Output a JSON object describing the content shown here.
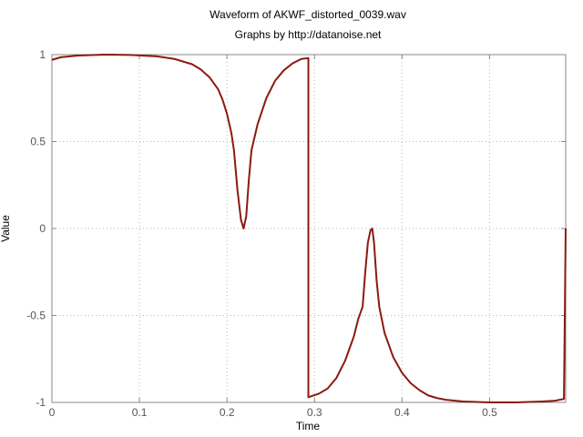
{
  "chart_data": {
    "type": "line",
    "title": "Waveform of AKWF_distorted_0039.wav",
    "subtitle": "Graphs by http://datanoise.net",
    "xlabel": "Time",
    "ylabel": "Value",
    "xlim": [
      0,
      0.587
    ],
    "ylim": [
      -1,
      1
    ],
    "xticks": [
      {
        "value": 0,
        "label": "0"
      },
      {
        "value": 0.1,
        "label": "0.1"
      },
      {
        "value": 0.2,
        "label": "0.2"
      },
      {
        "value": 0.3,
        "label": "0.3"
      },
      {
        "value": 0.4,
        "label": "0.4"
      },
      {
        "value": 0.5,
        "label": "0.5"
      }
    ],
    "yticks": [
      {
        "value": 1,
        "label": "1"
      },
      {
        "value": 0.5,
        "label": "0.5"
      },
      {
        "value": 0,
        "label": "0"
      },
      {
        "value": -0.5,
        "label": "-0.5"
      },
      {
        "value": -1,
        "label": "-1"
      }
    ],
    "grid": true,
    "line_color": "#8b1a10",
    "series": [
      {
        "x": [
          0,
          0.01,
          0.03,
          0.06,
          0.09,
          0.12,
          0.14,
          0.16,
          0.17,
          0.18,
          0.19,
          0.195,
          0.2,
          0.205,
          0.208,
          0.212,
          0.216,
          0.219,
          0.222,
          0.225,
          0.228,
          0.235,
          0.245,
          0.255,
          0.265,
          0.275,
          0.285,
          0.293,
          0.293,
          0.296,
          0.305,
          0.315,
          0.325,
          0.335,
          0.345,
          0.35,
          0.355,
          0.358,
          0.361,
          0.364,
          0.366,
          0.368,
          0.371,
          0.374,
          0.38,
          0.39,
          0.4,
          0.41,
          0.42,
          0.43,
          0.44,
          0.45,
          0.47,
          0.5,
          0.53,
          0.56,
          0.575,
          0.585,
          0.586,
          0.587
        ],
        "y": [
          0.97,
          0.985,
          0.995,
          1.0,
          0.998,
          0.99,
          0.975,
          0.945,
          0.915,
          0.87,
          0.8,
          0.74,
          0.66,
          0.55,
          0.45,
          0.22,
          0.05,
          0.0,
          0.07,
          0.28,
          0.45,
          0.6,
          0.75,
          0.85,
          0.91,
          0.95,
          0.975,
          0.98,
          -0.97,
          -0.965,
          -0.95,
          -0.92,
          -0.86,
          -0.76,
          -0.62,
          -0.52,
          -0.45,
          -0.25,
          -0.08,
          -0.01,
          -0.0,
          -0.08,
          -0.3,
          -0.45,
          -0.6,
          -0.74,
          -0.83,
          -0.89,
          -0.93,
          -0.96,
          -0.975,
          -0.985,
          -0.995,
          -1.0,
          -1.0,
          -0.995,
          -0.99,
          -0.98,
          -0.5,
          0.0
        ]
      }
    ]
  }
}
